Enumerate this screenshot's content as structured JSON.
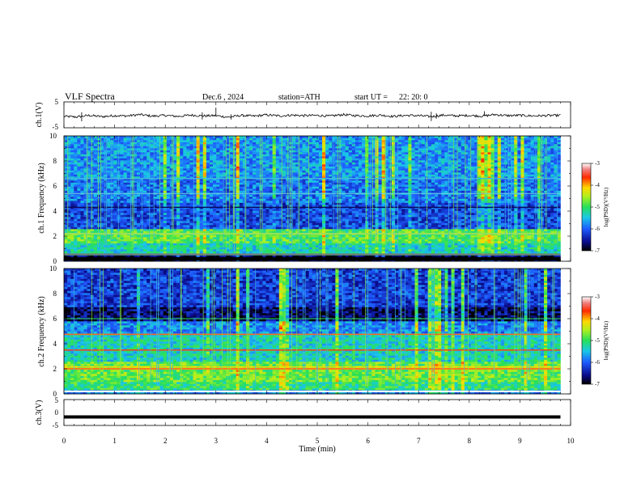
{
  "header": {
    "title": "VLF  Spectra",
    "date": "Dec.6  , 2024",
    "station": "station=ATH",
    "start_ut_label": "start  UT  =",
    "start_ut_value": "22: 20: 0"
  },
  "chart_data": [
    {
      "type": "line",
      "panel": "ch1-waveform",
      "ylabel": "ch.1(V)",
      "xlabel": "",
      "xlim": [
        0,
        10
      ],
      "ylim": [
        -5,
        5
      ],
      "yticks": [
        "5",
        "-5"
      ],
      "x_end": 9.8,
      "description_level": -0.3,
      "series": [
        {
          "x": [
            0,
            0.25,
            0.5,
            0.75,
            1,
            1.25,
            1.5,
            1.75,
            2,
            2.25,
            2.5,
            2.75,
            3,
            3.25,
            3.5,
            3.75,
            4,
            4.25,
            4.5,
            4.75,
            5,
            5.25,
            5.5,
            5.75,
            6,
            6.25,
            6.5,
            6.75,
            7,
            7.25,
            7.5,
            7.75,
            8,
            8.25,
            8.5,
            8.75,
            9,
            9.25,
            9.5,
            9.8
          ],
          "values": [
            -0.6,
            -0.8,
            -0.2,
            -0.7,
            -0.3,
            -0.4,
            0.1,
            -0.5,
            -0.2,
            -0.6,
            -0.1,
            -0.4,
            -0.3,
            -0.9,
            -0.2,
            -0.5,
            0.0,
            -0.4,
            -0.1,
            -0.3,
            -0.2,
            -0.5,
            0.1,
            -0.3,
            -0.4,
            -0.1,
            -0.6,
            -0.2,
            -0.3,
            -0.7,
            -0.1,
            -0.4,
            -0.2,
            -0.5,
            0.1,
            -0.3,
            -0.2,
            -0.4,
            -0.3,
            -0.2
          ]
        }
      ],
      "spikes": [
        {
          "x": 0.35,
          "values": [
            -2.5,
            1.0
          ]
        },
        {
          "x": 2.73,
          "values": [
            -1.8,
            1.0
          ]
        },
        {
          "x": 3.0,
          "values": [
            -0.5,
            2.8
          ]
        },
        {
          "x": 3.3,
          "values": [
            -1.8,
            0.2
          ]
        },
        {
          "x": 7.25,
          "values": [
            -2.4,
            1.2
          ]
        },
        {
          "x": 7.35,
          "values": [
            -1.5,
            0.6
          ]
        },
        {
          "x": 8.3,
          "values": [
            -0.2,
            1.4
          ]
        }
      ]
    },
    {
      "type": "heatmap",
      "panel": "ch1-spectrogram",
      "ylabel": "ch.1  Frequency  (kHz)",
      "xlim": [
        0,
        10
      ],
      "ylim": [
        0,
        10
      ],
      "yticks": [
        "0",
        "2",
        "4",
        "6",
        "8",
        "10"
      ],
      "x_end": 9.8,
      "colorbar": {
        "label": "log(PSD)(V²/Hz)",
        "range": [
          -7,
          -3
        ],
        "ticks": [
          "-3",
          "-4",
          "-5",
          "-6",
          "-7"
        ]
      }
    },
    {
      "type": "heatmap",
      "panel": "ch2-spectrogram",
      "ylabel": "ch.2  Frequency  (kHz)",
      "xlim": [
        0,
        10
      ],
      "ylim": [
        0,
        10
      ],
      "yticks": [
        "0",
        "2",
        "4",
        "6",
        "8",
        "10"
      ],
      "x_end": 9.8,
      "colorbar": {
        "label": "log(PSD)(V²/Hz)",
        "range": [
          -7,
          -3
        ],
        "ticks": [
          "-3",
          "-4",
          "-5",
          "-6",
          "-7"
        ]
      }
    },
    {
      "type": "line",
      "panel": "ch3-waveform",
      "ylabel": "ch.3(V)",
      "xlabel": "Time  (min)",
      "xlim": [
        0,
        10
      ],
      "ylim": [
        -5,
        5
      ],
      "yticks": [
        "5",
        "0",
        "-5"
      ],
      "xticks": [
        "0",
        "1",
        "2",
        "3",
        "4",
        "5",
        "6",
        "7",
        "8",
        "9",
        "10"
      ],
      "x_end": 9.8,
      "series": [
        {
          "x": [
            0,
            9.8
          ],
          "values": [
            -1.7,
            -1.7
          ]
        }
      ]
    }
  ]
}
